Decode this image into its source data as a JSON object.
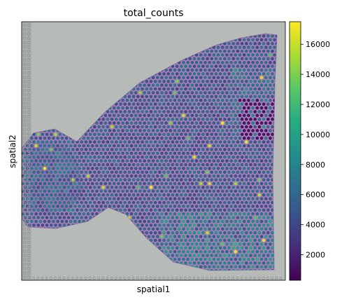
{
  "chart_data": {
    "type": "scatter",
    "title": "total_counts",
    "xlabel": "spatial1",
    "ylabel": "spatial2",
    "colormap": "viridis",
    "colorbar": {
      "min": 300,
      "max": 17500,
      "ticks": [
        2000,
        4000,
        6000,
        8000,
        10000,
        12000,
        14000,
        16000
      ],
      "tick_labels": [
        "2000",
        "4000",
        "6000",
        "8000",
        "10000",
        "12000",
        "14000",
        "16000"
      ]
    },
    "grid": false,
    "background_image": "H&E tissue section (purple stain on grey slide)",
    "spot_grid": {
      "spacing_units": 1.0
    }
  }
}
